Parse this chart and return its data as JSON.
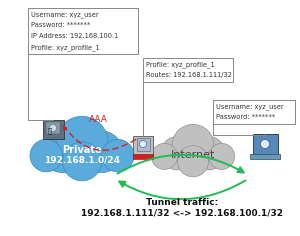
{
  "private_cloud_label_1": "Private",
  "private_cloud_label_2": "192.168.1.0/24",
  "internet_label": "Internet",
  "tunnel_traffic_line1": "Tunnel traffic:",
  "tunnel_traffic_line2": "192.168.1.111/32 <-> 192.168.100.1/32",
  "top_left_box": [
    "Username: xyz_user",
    "Password: *******",
    "IP Address: 192.168.100.1",
    "Profile: xyz_profile_1"
  ],
  "middle_box": [
    "Profile: xyz_profile_1",
    "Routes: 192.168.1.111/32"
  ],
  "top_right_box": [
    "Username: xyz_user",
    "Password: *******"
  ],
  "aaa_label": "AAA",
  "private_cloud_color": "#5aabdc",
  "private_cloud_dark": "#3a88bb",
  "internet_cloud_color": "#c0c0c0",
  "internet_cloud_dark": "#909090",
  "background_color": "#ffffff",
  "text_color": "#333333",
  "tunnel_arrow_color": "#22bb55",
  "aaa_arrow_color": "#cc2222",
  "box_edge_color": "#888888",
  "fw_gray": "#c0c0c0",
  "fw_red": "#cc2222",
  "laptop_blue": "#5588bb",
  "server_gray": "#607080"
}
